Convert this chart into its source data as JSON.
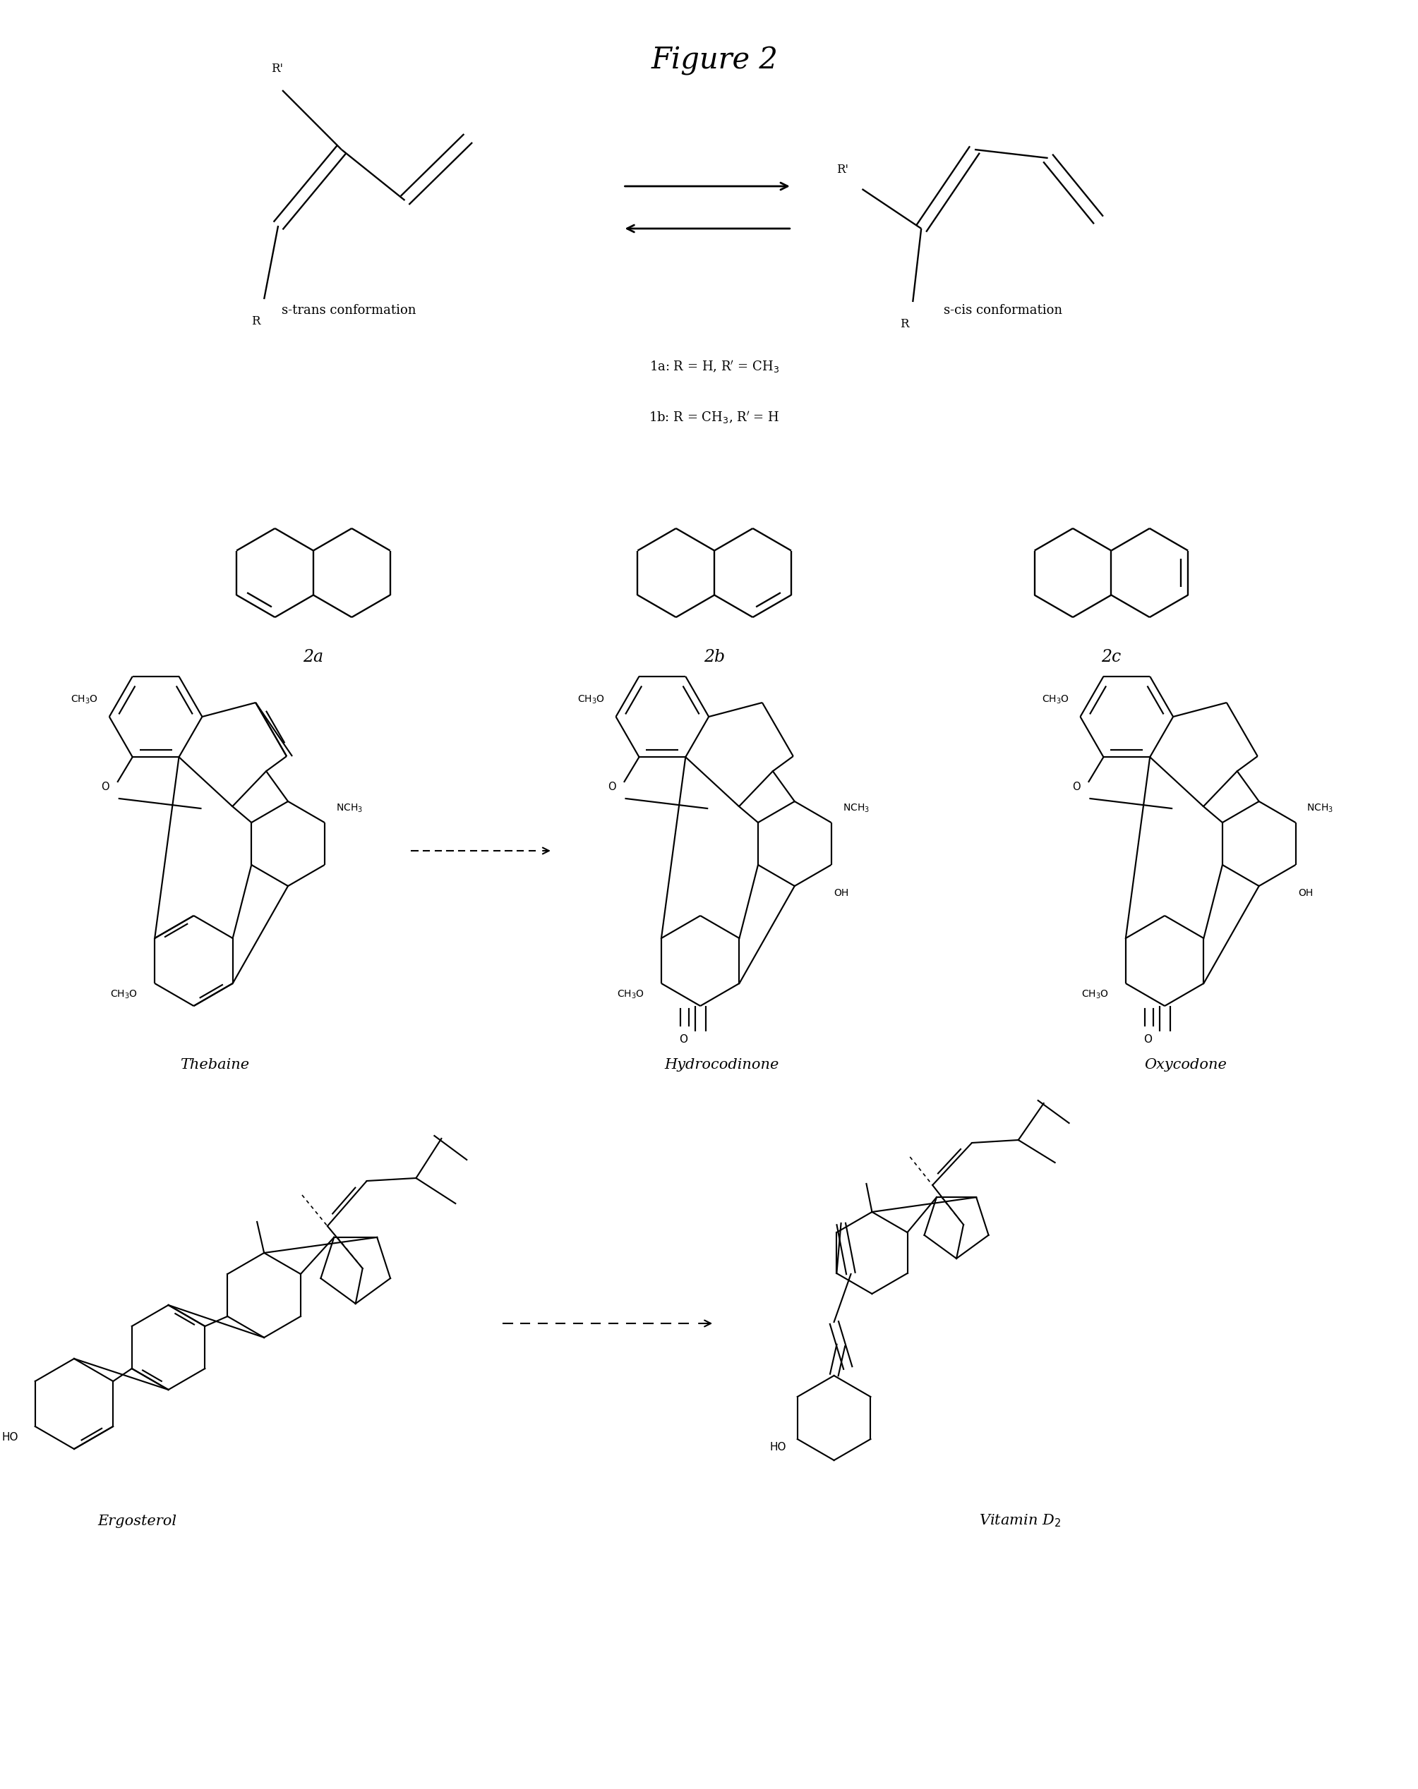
{
  "title": "Figure 2",
  "title_fontsize": 30,
  "fig_width": 20.09,
  "fig_height": 25.36,
  "bg_color": "#ffffff",
  "lc": "black",
  "lw": 1.7,
  "sections": {
    "row1_labels": [
      "s-trans conformation",
      "s-cis conformation"
    ],
    "row1_subs": [
      "1a: R = H, R’ = CH₃",
      "1b: R = CH₃, R’ = H"
    ],
    "row2_labels": [
      "2a",
      "2b",
      "2c"
    ],
    "row3_labels": [
      "Thebaine",
      "Hydrocodinone",
      "Oxycodone"
    ],
    "row4_labels": [
      "Ergosterol",
      "Vitamin D₂"
    ]
  }
}
